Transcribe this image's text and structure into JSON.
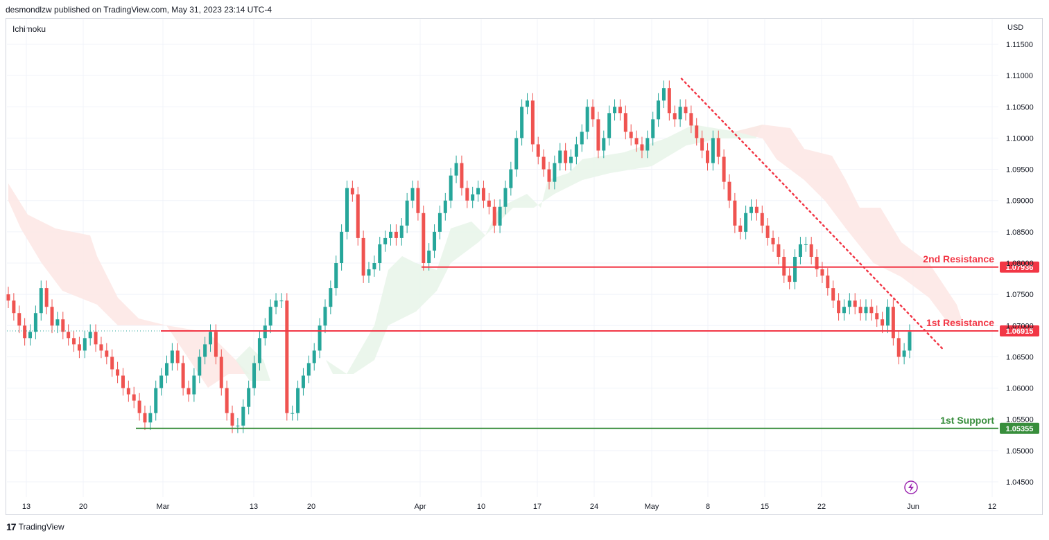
{
  "header": {
    "published_by": "desmondlzw published on TradingView.com, May 31, 2023 23:14 UTC-4"
  },
  "indicator": "Ichimoku",
  "currency": "USD",
  "footer": {
    "brand": "TradingView"
  },
  "colors": {
    "up": "#26a69a",
    "down": "#ef5350",
    "resistance": "#f23645",
    "support": "#388e3c",
    "cloud_bull": "#e8f5e9",
    "cloud_bear": "#fde6e4",
    "trend": "#f23645"
  },
  "chart_data": {
    "type": "candlestick",
    "title": "",
    "y_axis": {
      "min": 1.0425,
      "max": 1.1175,
      "ticks": [
        "1.04500",
        "1.05000",
        "1.05500",
        "1.06000",
        "1.06500",
        "1.07000",
        "1.07500",
        "1.08000",
        "1.08500",
        "1.09000",
        "1.09500",
        "1.10000",
        "1.10500",
        "1.11000",
        "1.11500"
      ],
      "side": "right"
    },
    "x_axis": {
      "ticks": [
        "13",
        "20",
        "Mar",
        "13",
        "20",
        "Apr",
        "10",
        "17",
        "24",
        "May",
        "8",
        "15",
        "22",
        "Jun",
        "12"
      ]
    },
    "levels": [
      {
        "name": "2nd Resistance",
        "value": "1.07936",
        "kind": "resistance"
      },
      {
        "name": "1st Resistance",
        "value": "1.06915",
        "kind": "resistance"
      },
      {
        "name": "1st Support",
        "value": "1.05355",
        "kind": "support"
      }
    ],
    "trendline": {
      "from": {
        "date": "May 4",
        "value": 1.1095
      },
      "to": {
        "date": "Jun 8",
        "value": 1.066
      },
      "style": "dotted"
    },
    "series": [
      {
        "name": "",
        "approx_closes": [
          1.074,
          1.072,
          1.07,
          1.068,
          1.069,
          1.072,
          1.076,
          1.073,
          1.07,
          1.071,
          1.069,
          1.068,
          1.067,
          1.066,
          1.068,
          1.069,
          1.067,
          1.066,
          1.065,
          1.063,
          1.062,
          1.06,
          1.059,
          1.058,
          1.056,
          1.0545,
          1.056,
          1.06,
          1.062,
          1.064,
          1.066,
          1.064,
          1.06,
          1.059,
          1.062,
          1.065,
          1.067,
          1.069,
          1.065,
          1.06,
          1.056,
          1.054,
          1.054,
          1.057,
          1.06,
          1.064,
          1.068,
          1.07,
          1.073,
          1.074,
          1.074,
          1.056,
          1.056,
          1.06,
          1.062,
          1.064,
          1.066,
          1.07,
          1.073,
          1.076,
          1.08,
          1.085,
          1.092,
          1.091,
          1.084,
          1.078,
          1.079,
          1.08,
          1.083,
          1.084,
          1.085,
          1.084,
          1.086,
          1.09,
          1.092,
          1.088,
          1.08,
          1.082,
          1.085,
          1.088,
          1.09,
          1.094,
          1.096,
          1.092,
          1.09,
          1.091,
          1.092,
          1.09,
          1.089,
          1.086,
          1.089,
          1.092,
          1.095,
          1.1,
          1.105,
          1.106,
          1.099,
          1.097,
          1.095,
          1.093,
          1.096,
          1.098,
          1.096,
          1.097,
          1.099,
          1.101,
          1.105,
          1.103,
          1.098,
          1.1,
          1.104,
          1.105,
          1.104,
          1.101,
          1.1,
          1.099,
          1.098,
          1.1,
          1.103,
          1.106,
          1.108,
          1.104,
          1.103,
          1.105,
          1.104,
          1.102,
          1.1,
          1.098,
          1.096,
          1.1,
          1.097,
          1.093,
          1.09,
          1.086,
          1.085,
          1.088,
          1.089,
          1.088,
          1.086,
          1.084,
          1.083,
          1.081,
          1.078,
          1.077,
          1.081,
          1.083,
          1.083,
          1.081,
          1.079,
          1.078,
          1.076,
          1.074,
          1.072,
          1.073,
          1.074,
          1.073,
          1.072,
          1.073,
          1.072,
          1.071,
          1.07,
          1.073,
          1.068,
          1.065,
          1.066,
          1.069
        ]
      }
    ]
  }
}
